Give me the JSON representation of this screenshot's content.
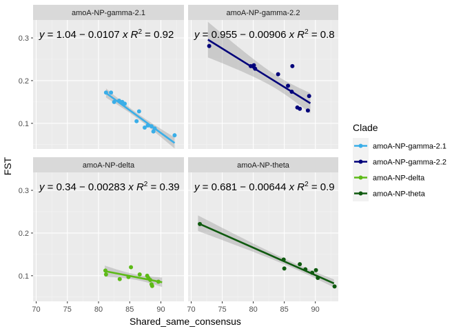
{
  "chart_data": {
    "type": "scatter",
    "xlabel": "Shared_same_consensus",
    "ylabel": "FST",
    "xlim": [
      69.5,
      93.7
    ],
    "ylim": [
      0.04,
      0.342
    ],
    "x_ticks": [
      70,
      75,
      80,
      85,
      90
    ],
    "y_ticks": [
      0.1,
      0.2,
      0.3
    ],
    "grid": true,
    "legend": {
      "title": "Clade",
      "position": "right"
    },
    "panels": [
      {
        "name": "amoA-NP-gamma-2.1",
        "color": "#3aaee8",
        "equation": {
          "intercept": "1.04",
          "slope": "0.0107",
          "r2": "0.92"
        },
        "fit": {
          "x": [
            81.2,
            92.2
          ],
          "y": [
            0.171,
            0.054
          ]
        },
        "points": [
          [
            81.2,
            0.172
          ],
          [
            82.0,
            0.172
          ],
          [
            82.5,
            0.15
          ],
          [
            83.3,
            0.153
          ],
          [
            83.8,
            0.15
          ],
          [
            84.2,
            0.146
          ],
          [
            86.1,
            0.105
          ],
          [
            86.5,
            0.128
          ],
          [
            87.4,
            0.09
          ],
          [
            87.9,
            0.095
          ],
          [
            88.5,
            0.093
          ],
          [
            88.8,
            0.081
          ],
          [
            89.0,
            0.088
          ],
          [
            92.2,
            0.072
          ]
        ]
      },
      {
        "name": "amoA-NP-gamma-2.2",
        "color": "#00007a",
        "equation": {
          "intercept": "0.955",
          "slope": "0.00906",
          "r2": "0.8"
        },
        "fit": {
          "x": [
            72.7,
            89.2
          ],
          "y": [
            0.296,
            0.147
          ]
        },
        "points": [
          [
            72.9,
            0.281
          ],
          [
            79.6,
            0.234
          ],
          [
            80.1,
            0.236
          ],
          [
            80.3,
            0.228
          ],
          [
            84.0,
            0.215
          ],
          [
            85.6,
            0.188
          ],
          [
            86.2,
            0.174
          ],
          [
            86.3,
            0.234
          ],
          [
            87.1,
            0.137
          ],
          [
            87.5,
            0.134
          ],
          [
            88.8,
            0.13
          ],
          [
            89.0,
            0.164
          ]
        ]
      },
      {
        "name": "amoA-NP-delta",
        "color": "#5dba17",
        "equation": {
          "intercept": "0.34",
          "slope": "0.00283",
          "r2": "0.39"
        },
        "fit": {
          "x": [
            81.0,
            90.2
          ],
          "y": [
            0.1108,
            0.0847
          ]
        },
        "points": [
          [
            81.1,
            0.112
          ],
          [
            81.2,
            0.103
          ],
          [
            83.4,
            0.092
          ],
          [
            84.8,
            0.097
          ],
          [
            85.2,
            0.12
          ],
          [
            86.6,
            0.103
          ],
          [
            87.8,
            0.1
          ],
          [
            88.0,
            0.095
          ],
          [
            88.3,
            0.09
          ],
          [
            88.5,
            0.08
          ],
          [
            88.6,
            0.076
          ],
          [
            89.6,
            0.086
          ]
        ]
      },
      {
        "name": "amoA-NP-theta",
        "color": "#0f5a0f",
        "equation": {
          "intercept": "0.681",
          "slope": "0.00644",
          "r2": "0.9"
        },
        "fit": {
          "x": [
            71.1,
            93.0
          ],
          "y": [
            0.223,
            0.082
          ]
        },
        "points": [
          [
            71.4,
            0.221
          ],
          [
            84.9,
            0.138
          ],
          [
            85.0,
            0.117
          ],
          [
            87.5,
            0.127
          ],
          [
            88.4,
            0.115
          ],
          [
            89.5,
            0.107
          ],
          [
            90.1,
            0.113
          ],
          [
            90.4,
            0.095
          ],
          [
            93.1,
            0.075
          ]
        ]
      }
    ]
  }
}
